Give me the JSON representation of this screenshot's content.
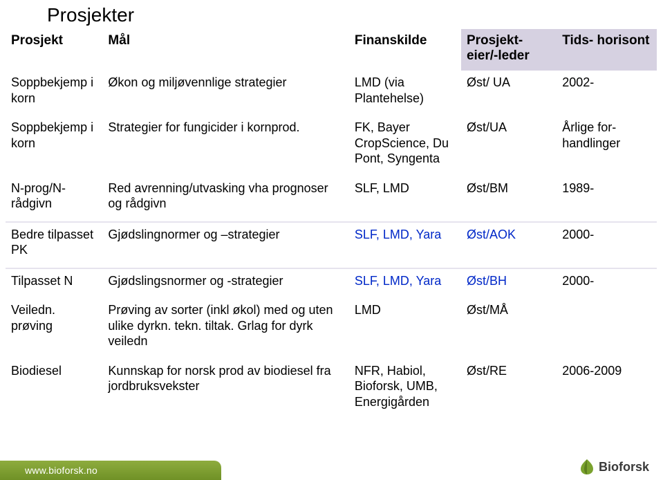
{
  "title": "Prosjekter",
  "headers": {
    "c1": "Prosjekt",
    "c2": "Mål",
    "c3": "Finanskilde",
    "c4": "Prosjekt-\neier/-leder",
    "c5": "Tids-\nhorisont"
  },
  "rows": [
    {
      "c1": "Soppbekjemp i korn",
      "c2": "Økon og miljøvennlige strategier",
      "c3": "LMD (via Plantehelse)",
      "c4": "Øst/ UA",
      "c5": "2002-"
    },
    {
      "c1": "Soppbekjemp i korn",
      "c2": "Strategier for fungicider i kornprod.",
      "c3": "FK, Bayer CropScience, Du Pont, Syngenta",
      "c4": "Øst/UA",
      "c5": "Årlige for-handlinger"
    },
    {
      "c1": "N-prog/N-rådgivn",
      "c2": "Red avrenning/utvasking vha prognoser og rådgivn",
      "c3": "SLF, LMD",
      "c4": "Øst/BM",
      "c5": "1989-",
      "sep": true
    },
    {
      "c1": "Bedre tilpasset PK",
      "c2": "Gjødslingnormer og –strategier",
      "c3": "SLF, LMD, Yara",
      "c4": "Øst/AOK",
      "c5": "2000-",
      "sep": true,
      "blue": true
    },
    {
      "c1": "Tilpasset N",
      "c2": "Gjødslingsnormer og -strategier",
      "c3": "SLF, LMD, Yara",
      "c4": "Øst/BH",
      "c5": "2000-",
      "blue": true
    },
    {
      "c1": "Veiledn. prøving",
      "c2": "Prøving av sorter (inkl økol) med og uten ulike dyrkn. tekn. tiltak. Grlag for dyrk veiledn",
      "c3": "LMD",
      "c4": "Øst/MÅ",
      "c5": ""
    },
    {
      "c1": "Biodiesel",
      "c2": "Kunnskap for norsk prod av biodiesel fra jordbruksvekster",
      "c3": "NFR, Habiol, Bioforsk, UMB, Energigården",
      "c4": "Øst/RE",
      "c5": "2006-2009"
    }
  ],
  "footer": {
    "url": "www.bioforsk.no",
    "brand": "Bioforsk"
  },
  "colors": {
    "header_bg": "#d6d1e1",
    "sep": "#e6e3ee",
    "blue": "#0028c8",
    "footer_green_top": "#8eac3e",
    "footer_green_bot": "#6f9126"
  }
}
